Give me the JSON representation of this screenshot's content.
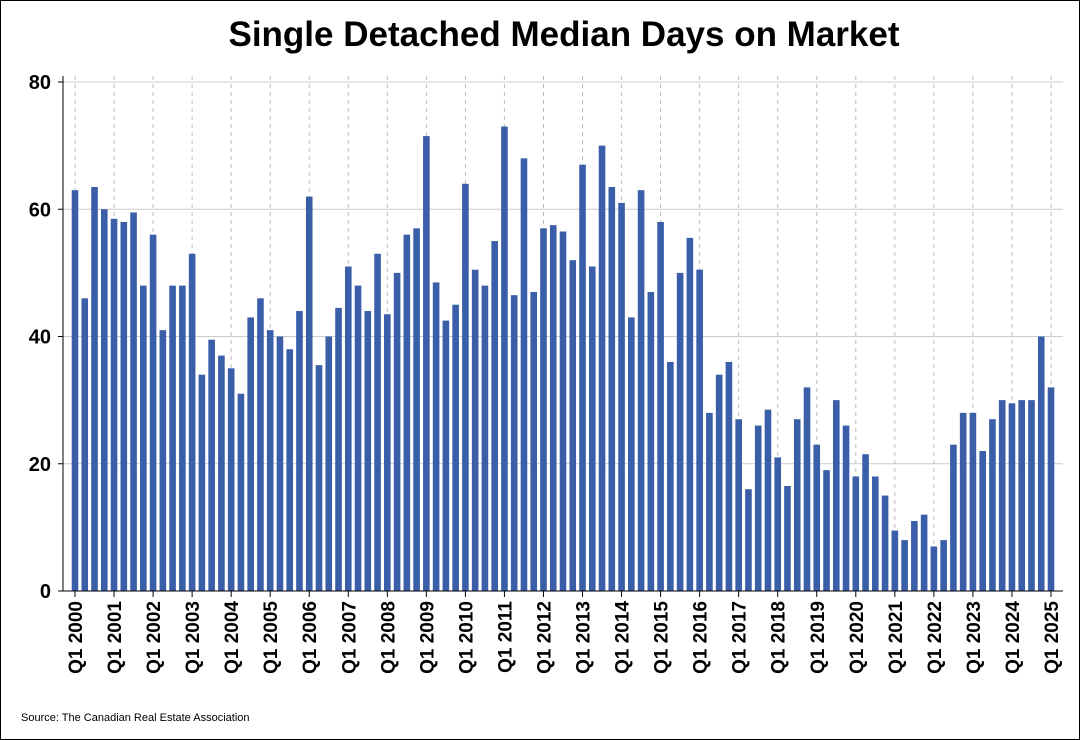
{
  "chart_data": {
    "type": "bar",
    "title": "Single Detached Median Days on Market",
    "xlabel": "",
    "ylabel": "",
    "ylim": [
      0,
      80
    ],
    "yticks": [
      "0",
      "20",
      "40",
      "60",
      "80"
    ],
    "grid": true,
    "legend": "none",
    "bar_color": "#3a5ea8",
    "categories": [
      "Q1 2000",
      "Q2 2000",
      "Q3 2000",
      "Q4 2000",
      "Q1 2001",
      "Q2 2001",
      "Q3 2001",
      "Q4 2001",
      "Q1 2002",
      "Q2 2002",
      "Q3 2002",
      "Q4 2002",
      "Q1 2003",
      "Q2 2003",
      "Q3 2003",
      "Q4 2003",
      "Q1 2004",
      "Q2 2004",
      "Q3 2004",
      "Q4 2004",
      "Q1 2005",
      "Q2 2005",
      "Q3 2005",
      "Q4 2005",
      "Q1 2006",
      "Q2 2006",
      "Q3 2006",
      "Q4 2006",
      "Q1 2007",
      "Q2 2007",
      "Q3 2007",
      "Q4 2007",
      "Q1 2008",
      "Q2 2008",
      "Q3 2008",
      "Q4 2008",
      "Q1 2009",
      "Q2 2009",
      "Q3 2009",
      "Q4 2009",
      "Q1 2010",
      "Q2 2010",
      "Q3 2010",
      "Q4 2010",
      "Q1 2011",
      "Q2 2011",
      "Q3 2011",
      "Q4 2011",
      "Q1 2012",
      "Q2 2012",
      "Q3 2012",
      "Q4 2012",
      "Q1 2013",
      "Q2 2013",
      "Q3 2013",
      "Q4 2013",
      "Q1 2014",
      "Q2 2014",
      "Q3 2014",
      "Q4 2014",
      "Q1 2015",
      "Q2 2015",
      "Q3 2015",
      "Q4 2015",
      "Q1 2016",
      "Q2 2016",
      "Q3 2016",
      "Q4 2016",
      "Q1 2017",
      "Q2 2017",
      "Q3 2017",
      "Q4 2017",
      "Q1 2018",
      "Q2 2018",
      "Q3 2018",
      "Q4 2018",
      "Q1 2019",
      "Q2 2019",
      "Q3 2019",
      "Q4 2019",
      "Q1 2020",
      "Q2 2020",
      "Q3 2020",
      "Q4 2020",
      "Q1 2021",
      "Q2 2021",
      "Q3 2021",
      "Q4 2021",
      "Q1 2022",
      "Q2 2022",
      "Q3 2022",
      "Q4 2022",
      "Q1 2023",
      "Q2 2023",
      "Q3 2023",
      "Q4 2023",
      "Q1 2024",
      "Q2 2024",
      "Q3 2024",
      "Q4 2024",
      "Q1 2025"
    ],
    "xtick_labels": [
      "Q1 2000",
      "Q1 2001",
      "Q1 2002",
      "Q1 2003",
      "Q1 2004",
      "Q1 2005",
      "Q1 2006",
      "Q1 2007",
      "Q1 2008",
      "Q1 2009",
      "Q1 2010",
      "Q1 2011",
      "Q1 2012",
      "Q1 2013",
      "Q1 2014",
      "Q1 2015",
      "Q1 2016",
      "Q1 2017",
      "Q1 2018",
      "Q1 2019",
      "Q1 2020",
      "Q1 2021",
      "Q1 2022",
      "Q1 2023",
      "Q1 2024",
      "Q1 2025"
    ],
    "values": [
      63,
      46,
      63.5,
      60,
      58.5,
      58,
      59.5,
      48,
      56,
      41,
      48,
      48,
      53,
      34,
      39.5,
      37,
      35,
      31,
      43,
      46,
      41,
      40,
      38,
      44,
      62,
      35.5,
      40,
      44.5,
      51,
      48,
      44,
      53,
      43.5,
      50,
      56,
      57,
      71.5,
      48.5,
      42.5,
      45,
      64,
      50.5,
      48,
      55,
      73,
      46.5,
      68,
      47,
      57,
      57.5,
      56.5,
      52,
      67,
      51,
      70,
      63.5,
      61,
      43,
      63,
      47,
      58,
      36,
      50,
      55.5,
      50.5,
      28,
      34,
      36,
      27,
      16,
      26,
      28.5,
      21,
      16.5,
      27,
      32,
      23,
      19,
      30,
      26,
      18,
      21.5,
      18,
      15,
      9.5,
      8,
      11,
      12,
      7,
      8,
      23,
      28,
      28,
      22,
      27,
      30,
      29.5,
      30,
      30,
      40,
      32
    ]
  },
  "source": "Source: The Canadian Real Estate Association"
}
